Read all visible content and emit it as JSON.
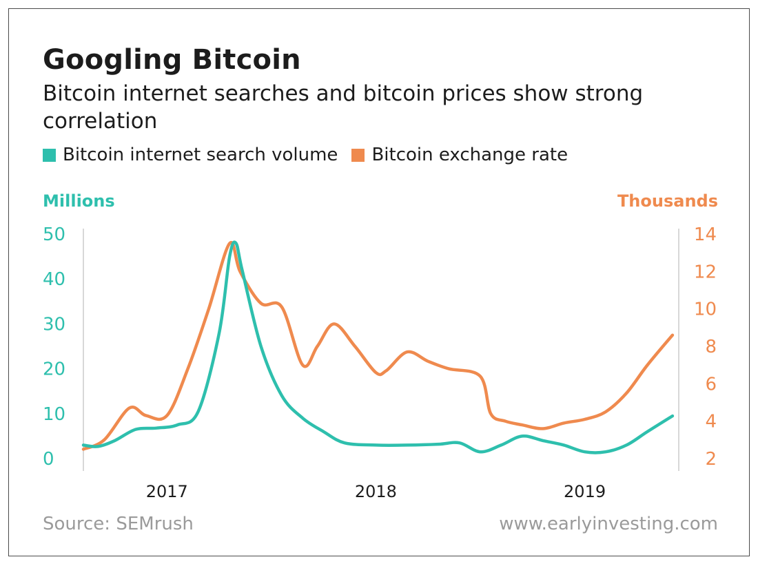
{
  "chart_data": {
    "type": "line",
    "title": "Googling Bitcoin",
    "subtitle": "Bitcoin internet searches and bitcoin prices show strong correlation",
    "left_axis": {
      "label": "Millions",
      "ylim": [
        0,
        50
      ],
      "ticks": [
        0,
        10,
        20,
        30,
        40,
        50
      ],
      "color": "#2ebfad"
    },
    "right_axis": {
      "label": "Thousands",
      "ylim": [
        2,
        14
      ],
      "ticks": [
        2,
        4,
        6,
        8,
        10,
        12,
        14
      ],
      "color": "#ef8a4e"
    },
    "x_axis": {
      "range": [
        2016.6,
        2019.45
      ],
      "ticks": [
        {
          "x": 2017.0,
          "label": "2017"
        },
        {
          "x": 2018.0,
          "label": "2018"
        },
        {
          "x": 2019.0,
          "label": "2019"
        }
      ]
    },
    "series": [
      {
        "name": "Bitcoin internet search volume",
        "axis": "left",
        "color": "#2ebfad",
        "x": [
          2016.6,
          2016.67,
          2016.75,
          2016.85,
          2016.95,
          2017.05,
          2017.15,
          2017.25,
          2017.3,
          2017.33,
          2017.36,
          2017.45,
          2017.55,
          2017.65,
          2017.75,
          2017.85,
          2018.0,
          2018.15,
          2018.3,
          2018.4,
          2018.5,
          2018.6,
          2018.7,
          2018.8,
          2018.9,
          2019.0,
          2019.1,
          2019.2,
          2019.3,
          2019.42
        ],
        "y": [
          3.0,
          2.7,
          4.0,
          6.5,
          6.8,
          7.5,
          10.5,
          28.0,
          45.0,
          48.0,
          42.0,
          25.0,
          14.0,
          9.0,
          6.0,
          3.5,
          3.0,
          3.0,
          3.2,
          3.5,
          1.5,
          3.0,
          5.0,
          4.0,
          3.0,
          1.5,
          1.5,
          3.0,
          6.0,
          9.5
        ]
      },
      {
        "name": "Bitcoin exchange rate",
        "axis": "right",
        "color": "#ef8a4e",
        "x": [
          2016.6,
          2016.7,
          2016.82,
          2016.9,
          2017.0,
          2017.1,
          2017.2,
          2017.3,
          2017.35,
          2017.45,
          2017.55,
          2017.65,
          2017.72,
          2017.8,
          2017.9,
          2018.0,
          2018.05,
          2018.15,
          2018.25,
          2018.35,
          2018.5,
          2018.55,
          2018.62,
          2018.7,
          2018.8,
          2018.9,
          2019.0,
          2019.1,
          2019.2,
          2019.3,
          2019.42
        ],
        "y": [
          2.5,
          3.0,
          4.7,
          4.3,
          4.3,
          6.8,
          10.0,
          13.5,
          12.0,
          10.3,
          10.1,
          7.0,
          8.0,
          9.2,
          8.0,
          6.6,
          6.7,
          7.7,
          7.2,
          6.8,
          6.4,
          4.4,
          4.0,
          3.8,
          3.6,
          3.9,
          4.1,
          4.5,
          5.5,
          7.0,
          8.6
        ]
      }
    ],
    "legend_placement": "top-left",
    "grid": false,
    "source": "Source: SEMrush",
    "website": "www.earlyinvesting.com"
  }
}
